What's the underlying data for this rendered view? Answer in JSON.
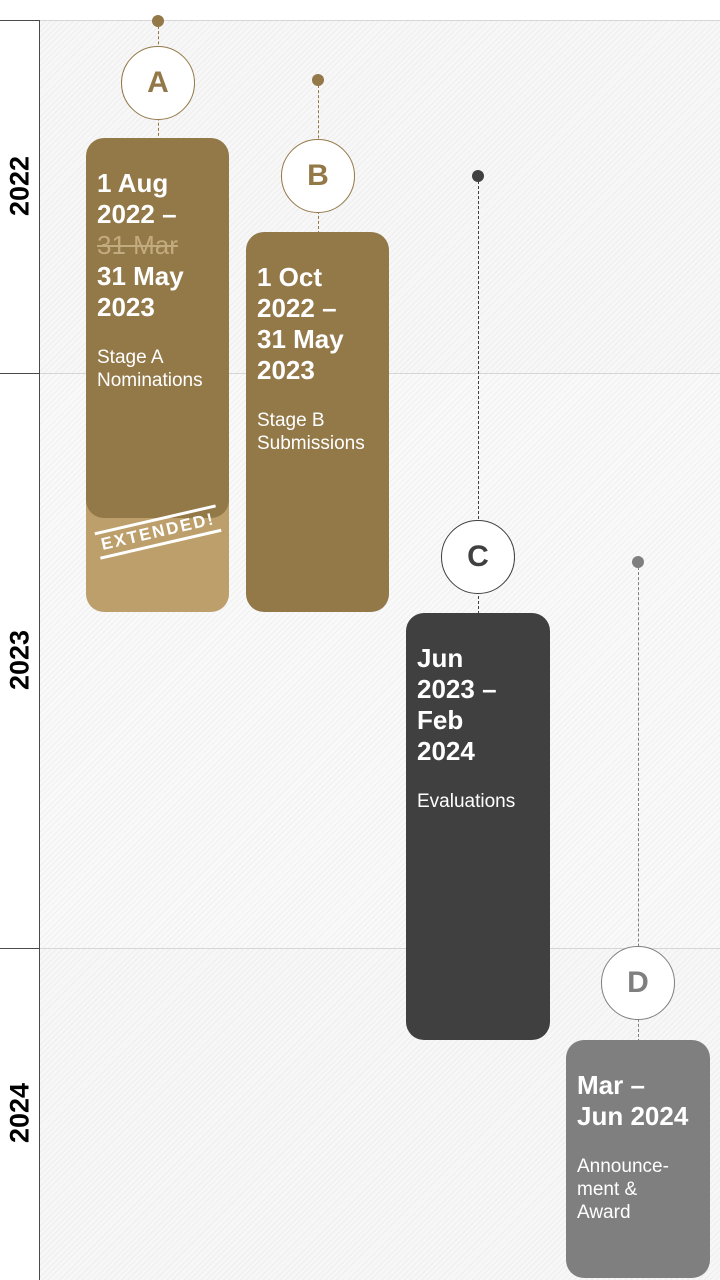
{
  "years": [
    {
      "label": "2022"
    },
    {
      "label": "2023"
    },
    {
      "label": "2024"
    }
  ],
  "stages": [
    {
      "letter": "A",
      "date_lines": [
        "1 Aug",
        "2022 –"
      ],
      "struck_date": "31 Mar",
      "extended_date_lines": [
        "31 May",
        "2023"
      ],
      "description_lines": [
        "Stage A",
        "Nominations"
      ],
      "badge": "EXTENDED!",
      "color": "#937848",
      "extension_color": "#bc9f6b"
    },
    {
      "letter": "B",
      "date_lines": [
        "1 Oct",
        "2022 –",
        "31 May",
        "2023"
      ],
      "description_lines": [
        "Stage B",
        "Submissions"
      ],
      "color": "#937848"
    },
    {
      "letter": "C",
      "date_lines": [
        "Jun",
        "2023 –",
        "Feb",
        "2024"
      ],
      "description_lines": [
        "Evaluations"
      ],
      "color": "#404040"
    },
    {
      "letter": "D",
      "date_lines": [
        "Mar –",
        "Jun 2024"
      ],
      "description_lines": [
        "Announce-",
        "ment &",
        "Award"
      ],
      "color": "#7f7f7f"
    }
  ]
}
